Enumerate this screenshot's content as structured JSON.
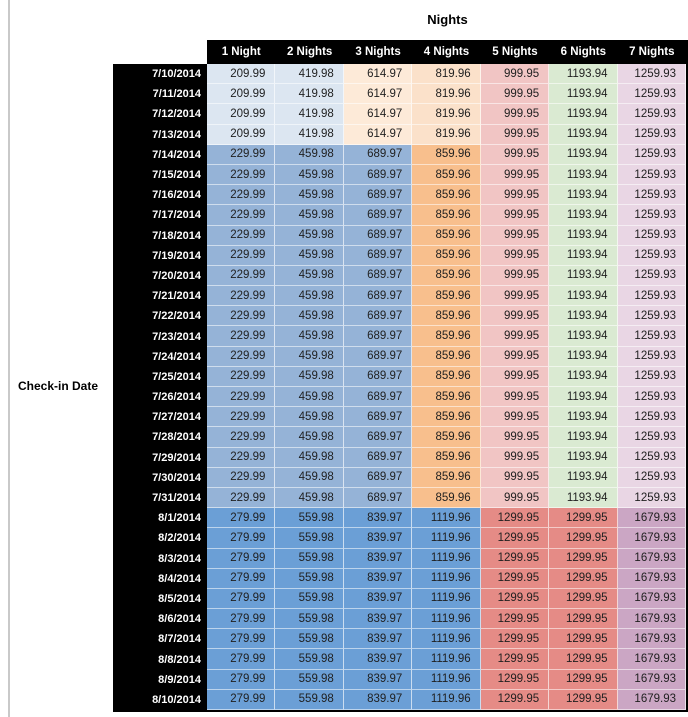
{
  "chart_data": {
    "type": "table",
    "title": "Nights",
    "row_axis_label": "Check-in Date",
    "columns": [
      "1 Night",
      "2 Nights",
      "3 Nights",
      "4 Nights",
      "5 Nights",
      "6 Nights",
      "7 Nights"
    ],
    "rows": [
      {
        "date": "7/10/2014",
        "band": "early_july",
        "values": [
          "209.99",
          "419.98",
          "614.97",
          "819.96",
          "999.95",
          "1193.94",
          "1259.93"
        ]
      },
      {
        "date": "7/11/2014",
        "band": "early_july",
        "values": [
          "209.99",
          "419.98",
          "614.97",
          "819.96",
          "999.95",
          "1193.94",
          "1259.93"
        ]
      },
      {
        "date": "7/12/2014",
        "band": "early_july",
        "values": [
          "209.99",
          "419.98",
          "614.97",
          "819.96",
          "999.95",
          "1193.94",
          "1259.93"
        ]
      },
      {
        "date": "7/13/2014",
        "band": "early_july",
        "values": [
          "209.99",
          "419.98",
          "614.97",
          "819.96",
          "999.95",
          "1193.94",
          "1259.93"
        ]
      },
      {
        "date": "7/14/2014",
        "band": "mid_july",
        "values": [
          "229.99",
          "459.98",
          "689.97",
          "859.96",
          "999.95",
          "1193.94",
          "1259.93"
        ]
      },
      {
        "date": "7/15/2014",
        "band": "mid_july",
        "values": [
          "229.99",
          "459.98",
          "689.97",
          "859.96",
          "999.95",
          "1193.94",
          "1259.93"
        ]
      },
      {
        "date": "7/16/2014",
        "band": "mid_july",
        "values": [
          "229.99",
          "459.98",
          "689.97",
          "859.96",
          "999.95",
          "1193.94",
          "1259.93"
        ]
      },
      {
        "date": "7/17/2014",
        "band": "mid_july",
        "values": [
          "229.99",
          "459.98",
          "689.97",
          "859.96",
          "999.95",
          "1193.94",
          "1259.93"
        ]
      },
      {
        "date": "7/18/2014",
        "band": "mid_july",
        "values": [
          "229.99",
          "459.98",
          "689.97",
          "859.96",
          "999.95",
          "1193.94",
          "1259.93"
        ]
      },
      {
        "date": "7/19/2014",
        "band": "mid_july",
        "values": [
          "229.99",
          "459.98",
          "689.97",
          "859.96",
          "999.95",
          "1193.94",
          "1259.93"
        ]
      },
      {
        "date": "7/20/2014",
        "band": "mid_july",
        "values": [
          "229.99",
          "459.98",
          "689.97",
          "859.96",
          "999.95",
          "1193.94",
          "1259.93"
        ]
      },
      {
        "date": "7/21/2014",
        "band": "mid_july",
        "values": [
          "229.99",
          "459.98",
          "689.97",
          "859.96",
          "999.95",
          "1193.94",
          "1259.93"
        ]
      },
      {
        "date": "7/22/2014",
        "band": "mid_july",
        "values": [
          "229.99",
          "459.98",
          "689.97",
          "859.96",
          "999.95",
          "1193.94",
          "1259.93"
        ]
      },
      {
        "date": "7/23/2014",
        "band": "mid_july",
        "values": [
          "229.99",
          "459.98",
          "689.97",
          "859.96",
          "999.95",
          "1193.94",
          "1259.93"
        ]
      },
      {
        "date": "7/24/2014",
        "band": "mid_july",
        "values": [
          "229.99",
          "459.98",
          "689.97",
          "859.96",
          "999.95",
          "1193.94",
          "1259.93"
        ]
      },
      {
        "date": "7/25/2014",
        "band": "mid_july",
        "values": [
          "229.99",
          "459.98",
          "689.97",
          "859.96",
          "999.95",
          "1193.94",
          "1259.93"
        ]
      },
      {
        "date": "7/26/2014",
        "band": "mid_july",
        "values": [
          "229.99",
          "459.98",
          "689.97",
          "859.96",
          "999.95",
          "1193.94",
          "1259.93"
        ]
      },
      {
        "date": "7/27/2014",
        "band": "mid_july",
        "values": [
          "229.99",
          "459.98",
          "689.97",
          "859.96",
          "999.95",
          "1193.94",
          "1259.93"
        ]
      },
      {
        "date": "7/28/2014",
        "band": "mid_july",
        "values": [
          "229.99",
          "459.98",
          "689.97",
          "859.96",
          "999.95",
          "1193.94",
          "1259.93"
        ]
      },
      {
        "date": "7/29/2014",
        "band": "mid_july",
        "values": [
          "229.99",
          "459.98",
          "689.97",
          "859.96",
          "999.95",
          "1193.94",
          "1259.93"
        ]
      },
      {
        "date": "7/30/2014",
        "band": "mid_july",
        "values": [
          "229.99",
          "459.98",
          "689.97",
          "859.96",
          "999.95",
          "1193.94",
          "1259.93"
        ]
      },
      {
        "date": "7/31/2014",
        "band": "mid_july",
        "values": [
          "229.99",
          "459.98",
          "689.97",
          "859.96",
          "999.95",
          "1193.94",
          "1259.93"
        ]
      },
      {
        "date": "8/1/2014",
        "band": "august",
        "values": [
          "279.99",
          "559.98",
          "839.97",
          "1119.96",
          "1299.95",
          "1299.95",
          "1679.93"
        ]
      },
      {
        "date": "8/2/2014",
        "band": "august",
        "values": [
          "279.99",
          "559.98",
          "839.97",
          "1119.96",
          "1299.95",
          "1299.95",
          "1679.93"
        ]
      },
      {
        "date": "8/3/2014",
        "band": "august",
        "values": [
          "279.99",
          "559.98",
          "839.97",
          "1119.96",
          "1299.95",
          "1299.95",
          "1679.93"
        ]
      },
      {
        "date": "8/4/2014",
        "band": "august",
        "values": [
          "279.99",
          "559.98",
          "839.97",
          "1119.96",
          "1299.95",
          "1299.95",
          "1679.93"
        ]
      },
      {
        "date": "8/5/2014",
        "band": "august",
        "values": [
          "279.99",
          "559.98",
          "839.97",
          "1119.96",
          "1299.95",
          "1299.95",
          "1679.93"
        ]
      },
      {
        "date": "8/6/2014",
        "band": "august",
        "values": [
          "279.99",
          "559.98",
          "839.97",
          "1119.96",
          "1299.95",
          "1299.95",
          "1679.93"
        ]
      },
      {
        "date": "8/7/2014",
        "band": "august",
        "values": [
          "279.99",
          "559.98",
          "839.97",
          "1119.96",
          "1299.95",
          "1299.95",
          "1679.93"
        ]
      },
      {
        "date": "8/8/2014",
        "band": "august",
        "values": [
          "279.99",
          "559.98",
          "839.97",
          "1119.96",
          "1299.95",
          "1299.95",
          "1679.93"
        ]
      },
      {
        "date": "8/9/2014",
        "band": "august",
        "values": [
          "279.99",
          "559.98",
          "839.97",
          "1119.96",
          "1299.95",
          "1299.95",
          "1679.93"
        ]
      },
      {
        "date": "8/10/2014",
        "band": "august",
        "values": [
          "279.99",
          "559.98",
          "839.97",
          "1119.96",
          "1299.95",
          "1299.95",
          "1679.93"
        ]
      }
    ]
  },
  "palette": {
    "header_bg": "#000000",
    "header_text": "#ffffff",
    "light_blue": "#dce6f1",
    "med_blue": "#95b3d7",
    "dark_blue": "#6b9fd6",
    "light_tan": "#fdead8",
    "light_orange": "#fbe1ca",
    "med_orange": "#f8bf8d",
    "light_pink": "#f1c5c4",
    "salmon": "#e58b86",
    "light_green": "#daead2",
    "light_mauve": "#e9d6e4",
    "med_mauve": "#cba6c4"
  },
  "bands": {
    "early_july": [
      "light_blue",
      "light_blue",
      "light_tan",
      "light_orange",
      "light_pink",
      "light_green",
      "light_mauve"
    ],
    "mid_july": [
      "med_blue",
      "med_blue",
      "med_blue",
      "med_orange",
      "light_pink",
      "light_green",
      "light_mauve"
    ],
    "august": [
      "dark_blue",
      "dark_blue",
      "dark_blue",
      "dark_blue",
      "salmon",
      "salmon",
      "med_mauve"
    ]
  }
}
